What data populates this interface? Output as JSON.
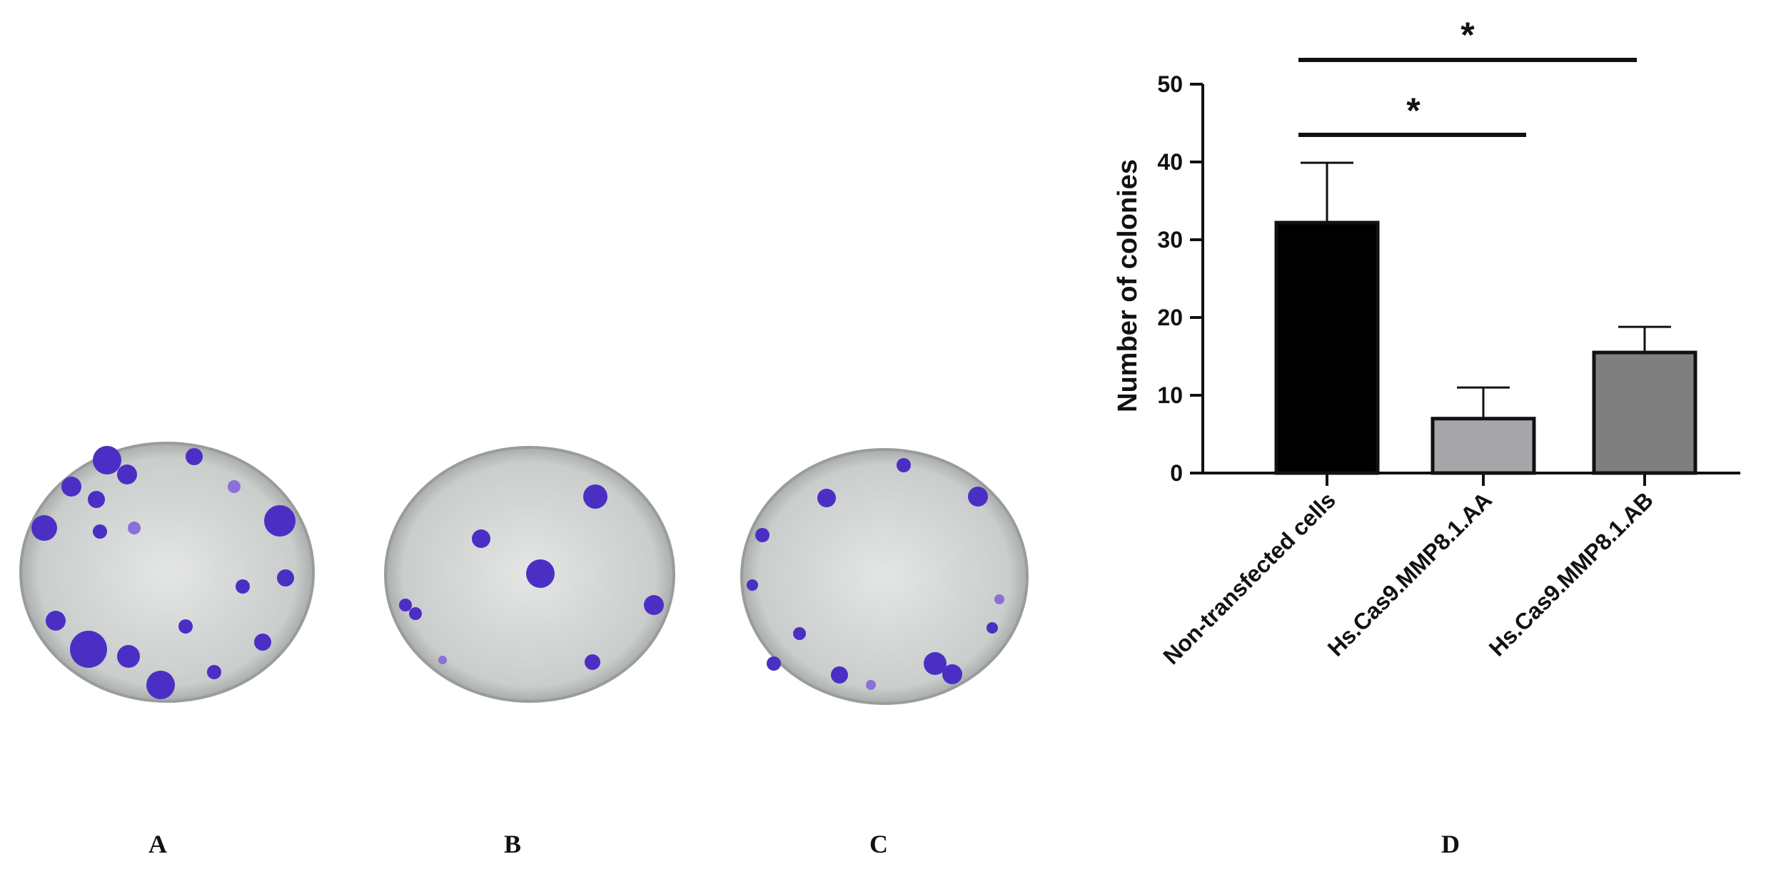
{
  "chart_data": {
    "type": "bar",
    "ylabel": "Number of colonies",
    "categories": [
      "Non-transfected cells",
      "Hs.Cas9.MMP8.1.AA",
      "Hs.Cas9.MMP8.1.AB"
    ],
    "values": [
      32.2,
      7,
      15.5
    ],
    "errors": [
      7.7,
      4,
      3.3
    ],
    "colors": [
      "#000000",
      "#a6a6aa",
      "#7f7f7f"
    ],
    "ylim": [
      0,
      50
    ],
    "yticks": [
      0,
      10,
      20,
      30,
      40,
      50
    ],
    "annotations": [
      "*",
      "*"
    ]
  },
  "panels": {
    "labels": [
      "A",
      "B",
      "C",
      "D"
    ]
  }
}
